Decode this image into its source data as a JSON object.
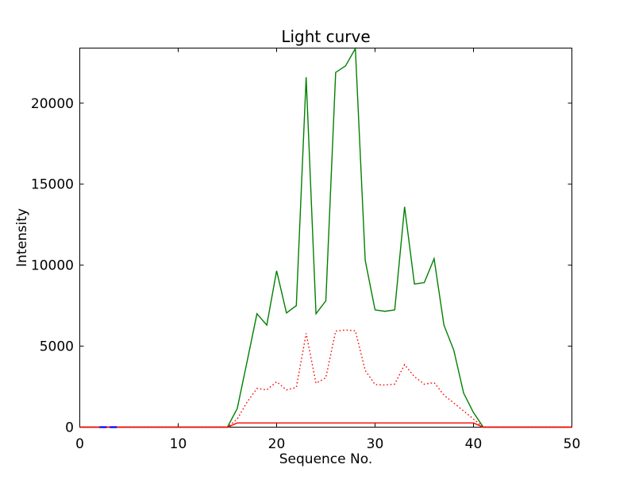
{
  "figure": {
    "background": "#ffffff",
    "frame_color": "#000000"
  },
  "chart_data": {
    "type": "line",
    "title": "Light curve",
    "xlabel": "Sequence No.",
    "ylabel": "Intensity",
    "xlim": [
      0,
      50
    ],
    "ylim": [
      0,
      23400
    ],
    "xticks": [
      0,
      10,
      20,
      30,
      40,
      50
    ],
    "yticks": [
      0,
      5000,
      10000,
      15000,
      20000
    ],
    "grid": false,
    "legend": null,
    "x": [
      0,
      1,
      2,
      3,
      4,
      5,
      6,
      7,
      8,
      9,
      10,
      11,
      12,
      13,
      14,
      15,
      16,
      17,
      18,
      19,
      20,
      21,
      22,
      23,
      24,
      25,
      26,
      27,
      28,
      29,
      30,
      31,
      32,
      33,
      34,
      35,
      36,
      37,
      38,
      39,
      40,
      41,
      42,
      43,
      44,
      45,
      46,
      47,
      48,
      49,
      50
    ],
    "series": [
      {
        "name": "green-solid",
        "color": "#008000",
        "style": "solid",
        "values": [
          0,
          0,
          0,
          0,
          0,
          0,
          0,
          0,
          0,
          0,
          0,
          0,
          0,
          0,
          0,
          0,
          1150,
          4050,
          7000,
          6300,
          9650,
          7050,
          7500,
          21600,
          7000,
          7800,
          21900,
          22300,
          23370,
          10300,
          7240,
          7150,
          7240,
          13600,
          8840,
          8920,
          10400,
          6300,
          4750,
          2100,
          900,
          0,
          0,
          0,
          0,
          0,
          0,
          0,
          0,
          0,
          0
        ]
      },
      {
        "name": "red-dotted",
        "color": "#ff0000",
        "style": "dotted",
        "values": [
          0,
          0,
          0,
          0,
          0,
          0,
          0,
          0,
          0,
          0,
          0,
          0,
          0,
          0,
          0,
          0,
          500,
          1550,
          2390,
          2300,
          2800,
          2300,
          2450,
          5790,
          2710,
          3050,
          5930,
          6000,
          5950,
          3500,
          2630,
          2600,
          2660,
          3860,
          3120,
          2650,
          2750,
          1980,
          1490,
          1000,
          500,
          0,
          0,
          0,
          0,
          0,
          0,
          0,
          0,
          0,
          0
        ]
      },
      {
        "name": "red-solid-baseline",
        "color": "#ff0000",
        "style": "solid",
        "values": [
          0,
          0,
          0,
          0,
          0,
          0,
          0,
          0,
          0,
          0,
          0,
          0,
          0,
          0,
          0,
          0,
          260,
          260,
          260,
          260,
          260,
          260,
          260,
          260,
          260,
          260,
          260,
          260,
          260,
          260,
          260,
          260,
          260,
          260,
          260,
          260,
          260,
          260,
          260,
          260,
          260,
          0,
          0,
          0,
          0,
          0,
          0,
          0,
          0,
          0,
          0
        ]
      },
      {
        "name": "blue-dashed-segment",
        "color": "#0000ff",
        "style": "dashed",
        "x": [
          2,
          3,
          4
        ],
        "values": [
          0,
          0,
          0
        ]
      }
    ]
  }
}
